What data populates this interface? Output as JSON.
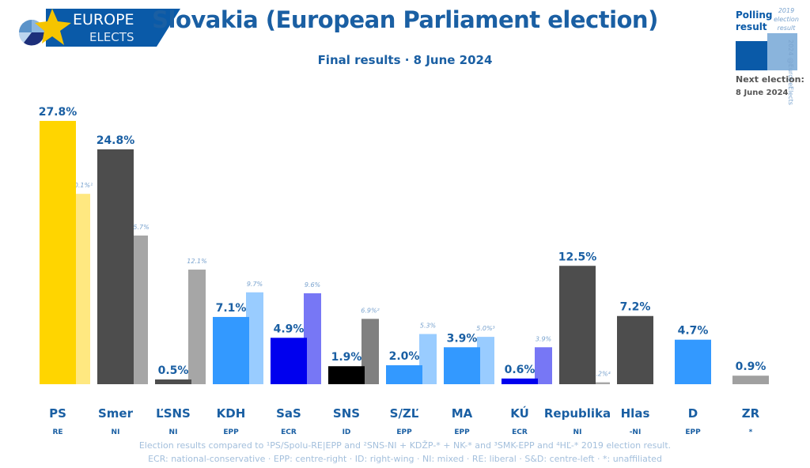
{
  "header": {
    "logo_text_line1": "EUROPE",
    "logo_text_line2": "ELECTS",
    "title": "Slovakia (European Parliament election)",
    "subtitle": "Final results · 8 June 2024"
  },
  "legend": {
    "polling_label_line1": "Polling",
    "polling_label_line2": "result",
    "previous_label_line1": "2019",
    "previous_label_line2": "election",
    "previous_label_line3": "result",
    "copyright": "2024 @EuropeElects",
    "next_election_label": "Next election:",
    "next_election_date": "8 June 2024",
    "colors": {
      "polling": "#0a5aa8",
      "previous": "#8ab4dc"
    }
  },
  "chart_data": {
    "type": "bar",
    "title": "Slovakia (European Parliament election)",
    "subtitle": "Final results · 8 June 2024",
    "xlabel": "",
    "ylabel": "",
    "ylim": [
      0,
      28
    ],
    "grid": false,
    "legend_position": "top-right",
    "categories": [
      "PS",
      "Smer",
      "ĽSNS",
      "KDH",
      "SaS",
      "SNS",
      "S/ZĽ",
      "MA",
      "KÚ",
      "Republika",
      "Hlas",
      "D",
      "ZR"
    ],
    "groups": [
      "RE",
      "NI",
      "NI",
      "EPP",
      "ECR",
      "ID",
      "EPP",
      "EPP",
      "ECR",
      "NI",
      "-NI",
      "EPP",
      "*"
    ],
    "series": [
      {
        "name": "Polling result",
        "values": [
          27.8,
          24.8,
          0.5,
          7.1,
          4.9,
          1.9,
          2.0,
          3.9,
          0.6,
          12.5,
          7.2,
          4.7,
          0.9
        ],
        "labels": [
          "27.8%",
          "24.8%",
          "0.5%",
          "7.1%",
          "4.9%",
          "1.9%",
          "2.0%",
          "3.9%",
          "0.6%",
          "12.5%",
          "7.2%",
          "4.7%",
          "0.9%"
        ],
        "colors": [
          "#ffd500",
          "#4d4d4d",
          "#4d4d4d",
          "#3399ff",
          "#0000ee",
          "#000000",
          "#3399ff",
          "#3399ff",
          "#0000ee",
          "#4d4d4d",
          "#4d4d4d",
          "#3399ff",
          "#a0a0a0"
        ]
      },
      {
        "name": "2019 election result",
        "values": [
          20.1,
          15.7,
          12.1,
          9.7,
          9.6,
          6.9,
          5.3,
          5.0,
          3.9,
          0.2,
          null,
          null,
          null
        ],
        "labels": [
          "20.1%¹",
          "15.7%",
          "12.1%",
          "9.7%",
          "9.6%",
          "6.9%²",
          "5.3%",
          "5.0%³",
          "3.9%",
          "0.2%⁴",
          "",
          "",
          ""
        ],
        "colors": [
          "#ffe880",
          "#a6a6a6",
          "#a6a6a6",
          "#99ccff",
          "#7777f5",
          "#808080",
          "#99ccff",
          "#99ccff",
          "#7777f5",
          "#a6a6a6",
          "#a6a6a6",
          "#99ccff",
          "#d0d0d0"
        ]
      }
    ],
    "label_color": "#1a5fa3",
    "prev_label_color": "#7ba4cf"
  },
  "footnotes": {
    "line1": "Election results compared to ¹PS/Spolu-RE|EPP and ²SNS-NI + KDŽP-* + NK-* and ³SMK-EPP and ⁴HĽ-* 2019 election result.",
    "line2": "ECR: national-conservative · EPP: centre-right · ID: right-wing · NI: mixed · RE: liberal · S&D: centre-left · *: unaffiliated"
  }
}
